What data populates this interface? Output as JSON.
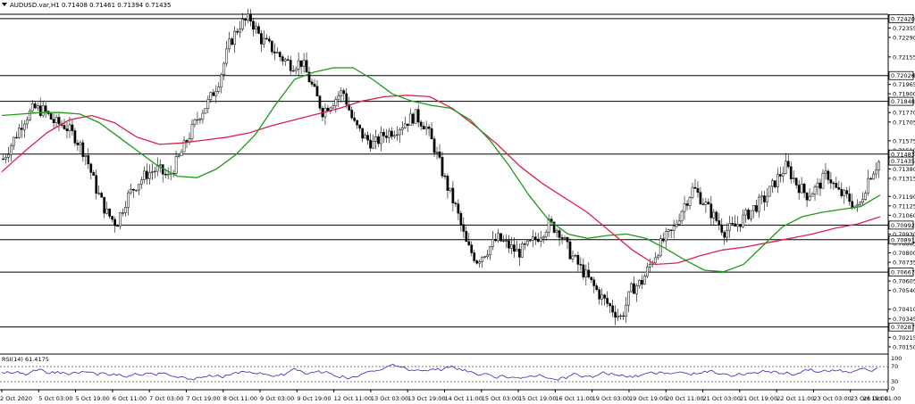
{
  "window": {
    "symbol_info": "AUDUSD.var,H1  0.71408 0.71461 0.71394 0.71435",
    "menu_icon": "triangle-down-icon"
  },
  "price_axis": {
    "min": 0.701,
    "max": 0.7245,
    "ticks": [
      "0.72355",
      "0.72290",
      "0.72155",
      "0.72026",
      "0.71965",
      "0.71900",
      "0.71770",
      "0.71705",
      "0.71575",
      "0.71510",
      "0.71380",
      "0.71315",
      "0.71190",
      "0.71125",
      "0.71060",
      "0.70930",
      "0.70865",
      "0.70800",
      "0.70735",
      "0.70605",
      "0.70540",
      "0.70410",
      "0.70345",
      "0.70215",
      "0.70150"
    ]
  },
  "levels": [
    {
      "value": "0.72420",
      "price": 0.7242
    },
    {
      "value": "0.72026",
      "price": 0.72026
    },
    {
      "value": "0.71848",
      "price": 0.71848
    },
    {
      "value": "0.71483",
      "price": 0.71483
    },
    {
      "value": "0.70992",
      "price": 0.70992
    },
    {
      "value": "0.70891",
      "price": 0.70891
    },
    {
      "value": "0.70667",
      "price": 0.70667
    },
    {
      "value": "0.70287",
      "price": 0.70287
    }
  ],
  "current_price": {
    "value": "0.71435",
    "price": 0.71435
  },
  "rsi": {
    "label": "RSI(14) 61.4175",
    "ticks": [
      "100",
      "70",
      "30",
      "0"
    ],
    "levels": [
      70,
      30
    ]
  },
  "time_axis": [
    "2 Oct 2020",
    "5 Oct 03:00",
    "5 Oct 19:00",
    "6 Oct 11:00",
    "7 Oct 03:00",
    "7 Oct 19:00",
    "8 Oct 11:00",
    "9 Oct 03:00",
    "9 Oct 19:00",
    "12 Oct 11:00",
    "13 Oct 03:00",
    "13 Oct 19:00",
    "14 Oct 11:00",
    "15 Oct 03:00",
    "15 Oct 19:00",
    "16 Oct 11:00",
    "19 Oct 03:00",
    "19 Oct 19:00",
    "20 Oct 11:00",
    "21 Oct 03:00",
    "21 Oct 19:00",
    "22 Oct 11:00",
    "23 Oct 03:00",
    "23 Oct 19:00",
    "26 Oct 11:00"
  ],
  "chart_data": {
    "type": "candlestick",
    "close_path": [
      0.7145,
      0.7158,
      0.7172,
      0.718,
      0.7178,
      0.717,
      0.7168,
      0.716,
      0.7148,
      0.7125,
      0.7108,
      0.71,
      0.7118,
      0.7128,
      0.7135,
      0.7138,
      0.7132,
      0.7145,
      0.716,
      0.7175,
      0.7185,
      0.72,
      0.7225,
      0.7238,
      0.7242,
      0.7228,
      0.7222,
      0.7215,
      0.721,
      0.7212,
      0.7195,
      0.7178,
      0.7185,
      0.7192,
      0.717,
      0.716,
      0.7155,
      0.7162,
      0.7165,
      0.717,
      0.7175,
      0.7168,
      0.715,
      0.7128,
      0.711,
      0.7085,
      0.7075,
      0.7082,
      0.709,
      0.7085,
      0.708,
      0.7085,
      0.7092,
      0.71,
      0.7095,
      0.708,
      0.707,
      0.706,
      0.705,
      0.7042,
      0.7035,
      0.7055,
      0.706,
      0.7075,
      0.7088,
      0.7095,
      0.7112,
      0.7125,
      0.7115,
      0.7105,
      0.7095,
      0.7098,
      0.7105,
      0.7112,
      0.7118,
      0.713,
      0.714,
      0.7128,
      0.712,
      0.7125,
      0.7135,
      0.7122,
      0.7118,
      0.711,
      0.7132,
      0.7143
    ],
    "ma_green": [
      0.7175,
      0.7176,
      0.7177,
      0.7177,
      0.7176,
      0.717,
      0.716,
      0.715,
      0.714,
      0.7133,
      0.7132,
      0.7138,
      0.7148,
      0.7162,
      0.7182,
      0.72,
      0.7205,
      0.7208,
      0.7208,
      0.72,
      0.719,
      0.7185,
      0.7182,
      0.718,
      0.7172,
      0.7158,
      0.714,
      0.712,
      0.7103,
      0.7093,
      0.709,
      0.7092,
      0.7093,
      0.709,
      0.7083,
      0.7075,
      0.7068,
      0.7067,
      0.7072,
      0.7085,
      0.7098,
      0.7105,
      0.7108,
      0.711,
      0.7112,
      0.712
    ],
    "ma_red": [
      0.7136,
      0.715,
      0.7163,
      0.7172,
      0.7175,
      0.717,
      0.716,
      0.7155,
      0.7156,
      0.7158,
      0.716,
      0.7163,
      0.7168,
      0.7172,
      0.7176,
      0.718,
      0.7185,
      0.7188,
      0.7189,
      0.7188,
      0.718,
      0.7168,
      0.7155,
      0.714,
      0.7128,
      0.7118,
      0.7108,
      0.7095,
      0.7082,
      0.7072,
      0.7073,
      0.7078,
      0.7082,
      0.7084,
      0.7087,
      0.709,
      0.7093,
      0.7097,
      0.71,
      0.7105
    ]
  }
}
